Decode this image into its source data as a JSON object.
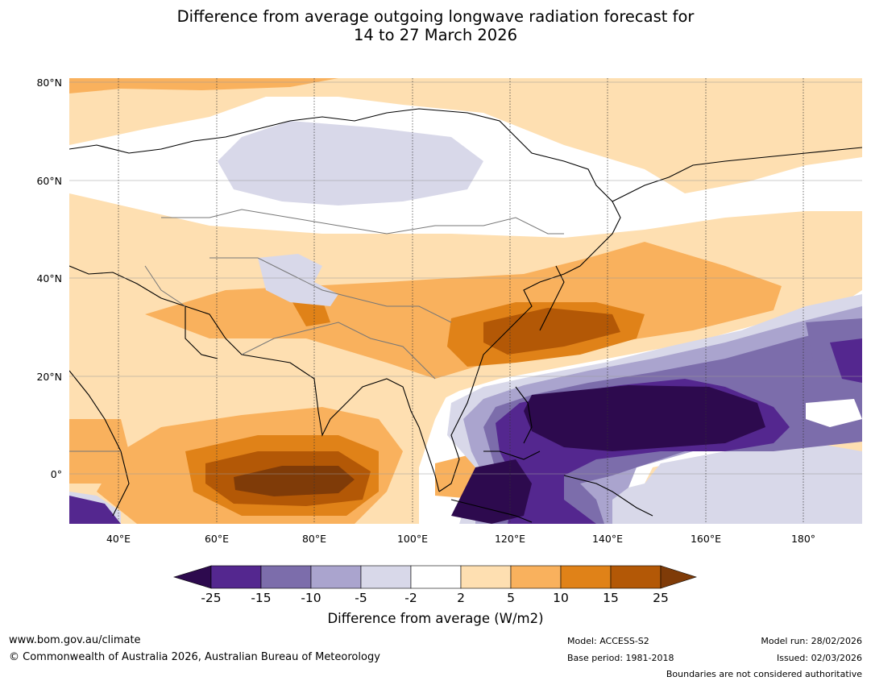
{
  "title": {
    "line1": "Difference from average outgoing longwave radiation forecast for",
    "line2": "14 to 27 March 2026"
  },
  "map": {
    "lat_labels": [
      "80°N",
      "60°N",
      "40°N",
      "20°N",
      "0°"
    ],
    "lon_labels": [
      "40°E",
      "60°E",
      "80°E",
      "100°E",
      "120°E",
      "140°E",
      "160°E",
      "180°"
    ],
    "lat_range": [
      -10,
      81
    ],
    "lon_range": [
      30,
      192
    ],
    "icons": [
      "coastline-icon",
      "country-boundary-icon"
    ]
  },
  "colorbar": {
    "ticks": [
      "-25",
      "-15",
      "-10",
      "-5",
      "-2",
      "2",
      "5",
      "10",
      "15",
      "25"
    ],
    "colors": [
      "#2d0a4e",
      "#54278f",
      "#7c6dab",
      "#aaa4ce",
      "#d8d8e9",
      "#ffffff",
      "#fedfb1",
      "#f9b15d",
      "#e08218",
      "#b35806",
      "#7f3b08"
    ],
    "label": "Difference from average (W/m2)"
  },
  "footer": {
    "url": "www.bom.gov.au/climate",
    "copyright": "© Commonwealth of Australia 2026, Australian Bureau of Meteorology",
    "model": "Model: ACCESS-S2",
    "base_period": "Base period: 1981-2018",
    "model_run": "Model run: 28/02/2026",
    "issued": "Issued: 02/03/2026",
    "disclaimer": "Boundaries are not considered authoritative"
  }
}
